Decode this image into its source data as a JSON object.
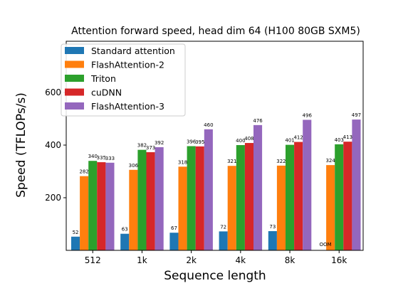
{
  "chart_data": {
    "type": "bar",
    "title": "Attention forward speed, head dim 64 (H100 80GB SXM5)",
    "xlabel": "Sequence length",
    "ylabel": "Speed (TFLOPs/s)",
    "categories": [
      "512",
      "1k",
      "2k",
      "4k",
      "8k",
      "16k"
    ],
    "ylim": [
      0,
      600
    ],
    "yticks": [
      200,
      400,
      600
    ],
    "grid": false,
    "legend_position": "top-left",
    "series": [
      {
        "name": "Standard attention",
        "color": "#1f77b4",
        "values": [
          52,
          63,
          67,
          72,
          73,
          null
        ],
        "labels": [
          "52",
          "63",
          "67",
          "72",
          "73",
          "OOM"
        ]
      },
      {
        "name": "FlashAttention-2",
        "color": "#ff7f0e",
        "values": [
          282,
          306,
          318,
          321,
          322,
          324
        ],
        "labels": [
          "282",
          "306",
          "318",
          "321",
          "322",
          "324"
        ]
      },
      {
        "name": "Triton",
        "color": "#2ca02c",
        "values": [
          340,
          382,
          396,
          400,
          401,
          403
        ],
        "labels": [
          "340",
          "382",
          "396",
          "400",
          "401",
          "403"
        ]
      },
      {
        "name": "cuDNN",
        "color": "#d62728",
        "values": [
          335,
          373,
          395,
          408,
          412,
          413
        ],
        "labels": [
          "335",
          "373",
          "395",
          "408",
          "412",
          "413"
        ]
      },
      {
        "name": "FlashAttention-3",
        "color": "#9467bd",
        "values": [
          333,
          392,
          460,
          476,
          496,
          497
        ],
        "labels": [
          "333",
          "392",
          "460",
          "476",
          "496",
          "497"
        ]
      }
    ]
  }
}
